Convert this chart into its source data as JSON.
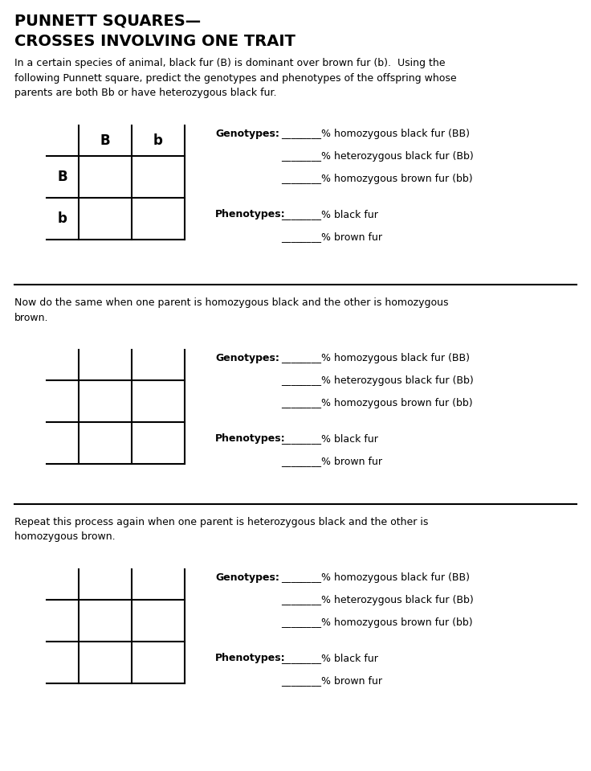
{
  "title_line1": "PUNNETT SQUARES—",
  "title_line2": "CROSSES INVOLVING ONE TRAIT",
  "bg_color": "#ffffff",
  "text_color": "#000000",
  "title_fontsize": 14,
  "body_fontsize": 9,
  "label_fontsize": 12,
  "section1": {
    "instruction": "In a certain species of animal, black fur (B) is dominant over brown fur (b).  Using the\nfollowing Punnett square, predict the genotypes and phenotypes of the offspring whose\nparents are both Bb or have heterozygous black fur.",
    "grid_labels_top": [
      "B",
      "b"
    ],
    "grid_labels_left": [
      "B",
      "b"
    ],
    "show_labels": true,
    "genotype_label": "Genotypes:",
    "phenotype_label": "Phenotypes:",
    "genotype_lines": [
      "________% homozygous black fur (BB)",
      "________% heterozygous black fur (Bb)",
      "________% homozygous brown fur (bb)"
    ],
    "phenotype_lines": [
      "________% black fur",
      "________% brown fur"
    ]
  },
  "section2": {
    "instruction": "Now do the same when one parent is homozygous black and the other is homozygous\nbrown.",
    "show_labels": false,
    "genotype_label": "Genotypes:",
    "phenotype_label": "Phenotypes:",
    "genotype_lines": [
      "________% homozygous black fur (BB)",
      "________% heterozygous black fur (Bb)",
      "________% homozygous brown fur (bb)"
    ],
    "phenotype_lines": [
      "________% black fur",
      "________% brown fur"
    ]
  },
  "section3": {
    "instruction": "Repeat this process again when one parent is heterozygous black and the other is\nhomozygous brown.",
    "show_labels": false,
    "genotype_label": "Genotypes:",
    "phenotype_label": "Phenotypes:",
    "genotype_lines": [
      "________% homozygous black fur (BB)",
      "________% heterozygous black fur (Bb)",
      "________% homozygous brown fur (bb)"
    ],
    "phenotype_lines": [
      "________% black fur",
      "________% brown fur"
    ]
  }
}
